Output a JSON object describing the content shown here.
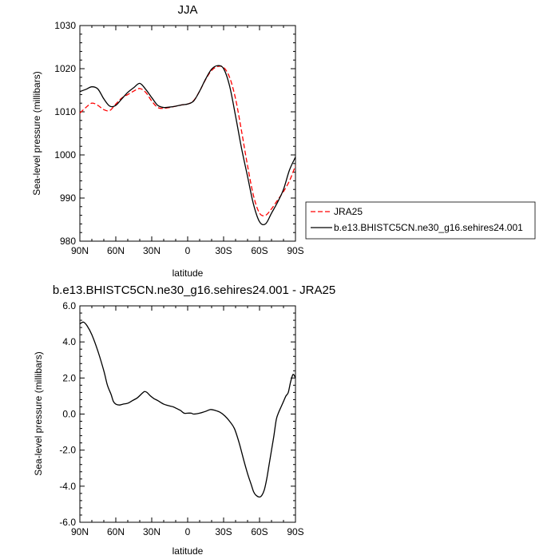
{
  "chart_data": [
    {
      "type": "line",
      "title": "JJA",
      "xlabel": "latitude",
      "ylabel": "Sea-level pressure (millibars)",
      "xlim": [
        90,
        -90
      ],
      "ylim": [
        980,
        1030
      ],
      "xticks": [
        90,
        60,
        30,
        0,
        -30,
        -60,
        -90
      ],
      "xtick_labels": [
        "90N",
        "60N",
        "30N",
        "0",
        "30S",
        "60S",
        "90S"
      ],
      "yticks": [
        980,
        990,
        1000,
        1010,
        1020,
        1030
      ],
      "ytick_labels": [
        "980",
        "990",
        "1000",
        "1010",
        "1020",
        "1030"
      ],
      "legend_position": "right",
      "series": [
        {
          "name": "JRA25",
          "color": "#ff0000",
          "dash": "dashed",
          "x": [
            90,
            85,
            80,
            75,
            70,
            65,
            60,
            55,
            50,
            45,
            40,
            35,
            30,
            25,
            20,
            15,
            10,
            5,
            0,
            -5,
            -10,
            -15,
            -20,
            -25,
            -30,
            -35,
            -40,
            -45,
            -50,
            -55,
            -60,
            -65,
            -70,
            -75,
            -80,
            -85,
            -90
          ],
          "y": [
            1009.7,
            1011.0,
            1012.0,
            1011.5,
            1010.5,
            1010.3,
            1011.8,
            1013.2,
            1014.0,
            1014.8,
            1015.4,
            1014.5,
            1012.5,
            1011.0,
            1010.8,
            1011.0,
            1011.3,
            1011.6,
            1011.8,
            1012.6,
            1014.8,
            1017.5,
            1019.6,
            1020.5,
            1020.3,
            1018.0,
            1013.0,
            1005.5,
            997.5,
            990.5,
            986.5,
            986.0,
            987.5,
            989.5,
            991.5,
            994.0,
            997.5
          ]
        },
        {
          "name": "b.e13.BHISTC5CN.ne30_g16.sehires24.001",
          "color": "#000000",
          "dash": "solid",
          "x": [
            90,
            85,
            80,
            75,
            70,
            65,
            60,
            55,
            50,
            45,
            40,
            35,
            30,
            25,
            20,
            15,
            10,
            5,
            0,
            -5,
            -10,
            -15,
            -20,
            -25,
            -30,
            -35,
            -40,
            -45,
            -50,
            -55,
            -60,
            -65,
            -70,
            -75,
            -80,
            -85,
            -90
          ],
          "y": [
            1014.7,
            1015.2,
            1015.8,
            1015.3,
            1013.0,
            1011.3,
            1011.5,
            1013.0,
            1014.5,
            1015.6,
            1016.6,
            1015.2,
            1013.3,
            1011.5,
            1011.0,
            1011.1,
            1011.3,
            1011.6,
            1011.8,
            1012.5,
            1014.8,
            1017.6,
            1019.9,
            1020.7,
            1020.0,
            1016.0,
            1009.0,
            1001.5,
            995.0,
            988.5,
            984.5,
            984.0,
            986.5,
            989.0,
            992.0,
            996.5,
            999.5
          ]
        }
      ]
    },
    {
      "type": "line",
      "title": "b.e13.BHISTC5CN.ne30_g16.sehires24.001 - JRA25",
      "xlabel": "latitude",
      "ylabel": "Sea-level pressure (millibars)",
      "xlim": [
        90,
        -90
      ],
      "ylim": [
        -6,
        6
      ],
      "xticks": [
        90,
        60,
        30,
        0,
        -30,
        -60,
        -90
      ],
      "xtick_labels": [
        "90N",
        "60N",
        "30N",
        "0",
        "30S",
        "60S",
        "90S"
      ],
      "yticks": [
        -6,
        -4,
        -2,
        0,
        2,
        4,
        6
      ],
      "ytick_labels": [
        "-6.0",
        "-4.0",
        "-2.0",
        "0.0",
        "2.0",
        "4.0",
        "6.0"
      ],
      "series": [
        {
          "color": "#000000",
          "dash": "solid",
          "x": [
            90,
            87,
            84,
            80,
            75,
            70,
            67,
            64,
            62,
            60,
            57,
            54,
            50,
            46,
            42,
            38,
            36,
            34,
            31,
            28,
            25,
            20,
            15,
            12,
            9,
            6,
            3,
            0,
            -3,
            -5,
            -10,
            -15,
            -19,
            -23,
            -27,
            -31,
            -35,
            -39,
            -43,
            -47,
            -50,
            -53,
            -55,
            -57,
            -60,
            -62,
            -64,
            -66,
            -68,
            -70,
            -72,
            -74,
            -76,
            -78,
            -80,
            -82,
            -84,
            -86,
            -88,
            -90
          ],
          "y": [
            5.0,
            5.1,
            4.9,
            4.4,
            3.5,
            2.4,
            1.6,
            1.1,
            0.7,
            0.55,
            0.5,
            0.55,
            0.6,
            0.75,
            0.9,
            1.15,
            1.25,
            1.2,
            1.0,
            0.85,
            0.75,
            0.55,
            0.45,
            0.4,
            0.3,
            0.2,
            0.05,
            0.05,
            0.05,
            0.0,
            0.05,
            0.15,
            0.25,
            0.2,
            0.1,
            -0.1,
            -0.4,
            -0.8,
            -1.6,
            -2.6,
            -3.3,
            -3.9,
            -4.3,
            -4.5,
            -4.6,
            -4.5,
            -4.2,
            -3.6,
            -2.8,
            -2.0,
            -1.2,
            -0.3,
            0.1,
            0.4,
            0.7,
            1.0,
            1.2,
            1.8,
            2.2,
            2.0
          ]
        }
      ]
    }
  ]
}
